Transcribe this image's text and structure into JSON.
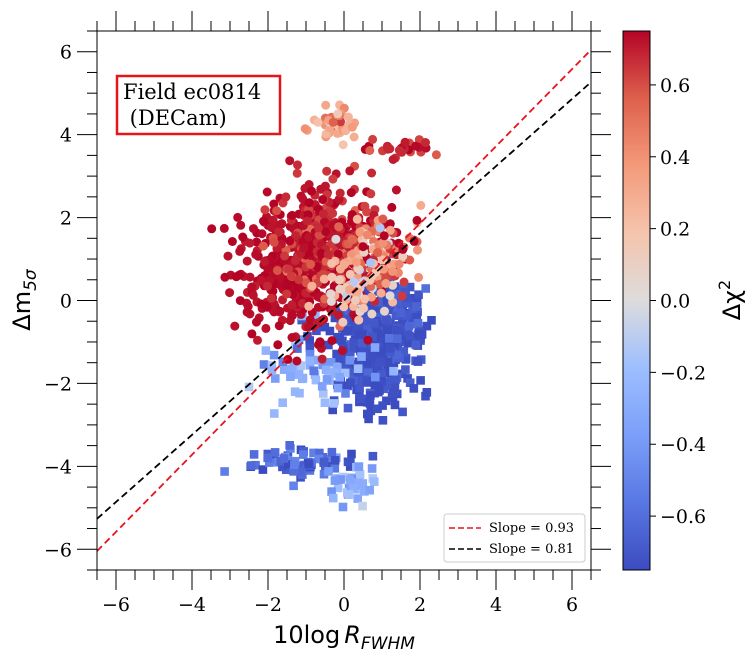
{
  "chart_data": {
    "type": "scatter",
    "xlabel_main": "10log",
    "xlabel_var": "R",
    "xlabel_sub": "FWHM",
    "ylabel_main": "Δm",
    "ylabel_sub": "5σ",
    "xlim": [
      -6.5,
      6.5
    ],
    "ylim": [
      -6.5,
      6.5
    ],
    "x_ticks": [
      -6,
      -4,
      -2,
      0,
      2,
      4,
      6
    ],
    "y_ticks": [
      -6,
      -4,
      -2,
      0,
      2,
      4,
      6
    ],
    "x_tick_labels": [
      "−6",
      "−4",
      "−2",
      "0",
      "2",
      "4",
      "6"
    ],
    "y_tick_labels": [
      "−6",
      "−4",
      "−2",
      "0",
      "2",
      "4",
      "6"
    ],
    "annotation": {
      "line1": "Field ec0814",
      "line2": " (DECam)",
      "border_color": "#e8141c"
    },
    "legend": {
      "placement": "lower right",
      "entries": [
        {
          "label": "Slope = 0.93",
          "color": "#e8141c"
        },
        {
          "label": "Slope = 0.81",
          "color": "#000000"
        }
      ]
    },
    "lines": [
      {
        "name": "Slope = 0.93",
        "slope": 0.93,
        "intercept": 0.0,
        "color": "#e8141c",
        "style": "dashed"
      },
      {
        "name": "Slope = 0.81",
        "slope": 0.81,
        "intercept": 0.0,
        "color": "#000000",
        "style": "dashed"
      }
    ],
    "colorbar": {
      "label_main": "Δχ",
      "label_sup": "2",
      "range": [
        -0.75,
        0.75
      ],
      "ticks": [
        -0.6,
        -0.4,
        -0.2,
        0.0,
        0.2,
        0.4,
        0.6
      ],
      "tick_labels": [
        "−0.6",
        "−0.4",
        "−0.2",
        "0.0",
        "0.2",
        "0.4",
        "0.6"
      ],
      "colormap": "coolwarm"
    },
    "series": [
      {
        "marker": "circle",
        "clusters": [
          {
            "cx": -1.3,
            "cy": 0.7,
            "sx": 0.75,
            "sy": 0.8,
            "n": 360,
            "dchi": 0.74,
            "spread": 0.02
          },
          {
            "cx": -0.3,
            "cy": 1.4,
            "sx": 0.75,
            "sy": 0.7,
            "n": 300,
            "dchi": 0.68,
            "spread": 0.08
          },
          {
            "cx": 0.8,
            "cy": 1.2,
            "sx": 0.55,
            "sy": 0.45,
            "n": 110,
            "dchi": 0.45,
            "spread": 0.2
          },
          {
            "cx": 0.4,
            "cy": 0.35,
            "sx": 0.5,
            "sy": 0.35,
            "n": 60,
            "dchi": 0.2,
            "spread": 0.15
          },
          {
            "cx": -0.3,
            "cy": 4.25,
            "sx": 0.35,
            "sy": 0.2,
            "n": 45,
            "dchi": 0.35,
            "spread": 0.15
          },
          {
            "cx": 1.6,
            "cy": 3.7,
            "sx": 0.45,
            "sy": 0.12,
            "n": 25,
            "dchi": 0.68,
            "spread": 0.07
          }
        ]
      },
      {
        "marker": "square",
        "clusters": [
          {
            "cx": 0.8,
            "cy": -1.0,
            "sx": 0.55,
            "sy": 0.75,
            "n": 420,
            "dchi": -0.72,
            "spread": 0.04
          },
          {
            "cx": -0.8,
            "cy": -1.7,
            "sx": 0.9,
            "sy": 0.45,
            "n": 60,
            "dchi": -0.35,
            "spread": 0.12
          },
          {
            "cx": 1.5,
            "cy": -0.3,
            "sx": 0.35,
            "sy": 0.45,
            "n": 60,
            "dchi": -0.7,
            "spread": 0.05
          },
          {
            "cx": -1.0,
            "cy": -3.9,
            "sx": 0.8,
            "sy": 0.2,
            "n": 70,
            "dchi": -0.65,
            "spread": 0.1
          },
          {
            "cx": 0.2,
            "cy": -4.4,
            "sx": 0.35,
            "sy": 0.2,
            "n": 35,
            "dchi": -0.3,
            "spread": 0.1
          }
        ]
      }
    ]
  }
}
